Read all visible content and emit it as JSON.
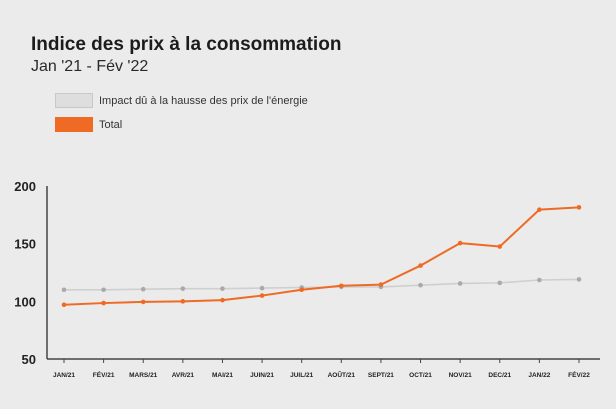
{
  "title": "Indice des prix à la consommation",
  "subtitle": "Jan '21 - Fév '22",
  "legend": [
    {
      "label": "Impact dû à la hausse des prix de l'énergie",
      "color": "#dedede"
    },
    {
      "label": "Total",
      "color": "#ef6a24"
    }
  ],
  "chart_data": {
    "type": "line",
    "categories": [
      "JAN/21",
      "FÉV/21",
      "MARS/21",
      "AVR/21",
      "MAI/21",
      "JUIN/21",
      "JUIL/21",
      "AOÛT/21",
      "SEPT/21",
      "OCT/21",
      "NOV/21",
      "DEC/21",
      "JAN/22",
      "FÉV/22"
    ],
    "yticks": [
      50,
      100,
      150,
      200
    ],
    "ylim": [
      50,
      200
    ],
    "grid": false,
    "legend_position": "top-left",
    "series": [
      {
        "name": "Impact dû à la hausse des prix de l'énergie",
        "color": "#a9a9a9",
        "line_color": "#cfcfcf",
        "values": [
          110,
          110,
          110.5,
          111,
          111,
          111.5,
          112,
          112.5,
          112.5,
          114,
          115.5,
          116,
          118.5,
          119
        ]
      },
      {
        "name": "Total",
        "color": "#ef6a24",
        "line_color": "#ef6a24",
        "values": [
          97,
          98.5,
          99.5,
          100,
          101,
          105,
          110,
          113.5,
          114.5,
          131,
          150.5,
          147.5,
          179.5,
          181.5
        ]
      }
    ]
  }
}
